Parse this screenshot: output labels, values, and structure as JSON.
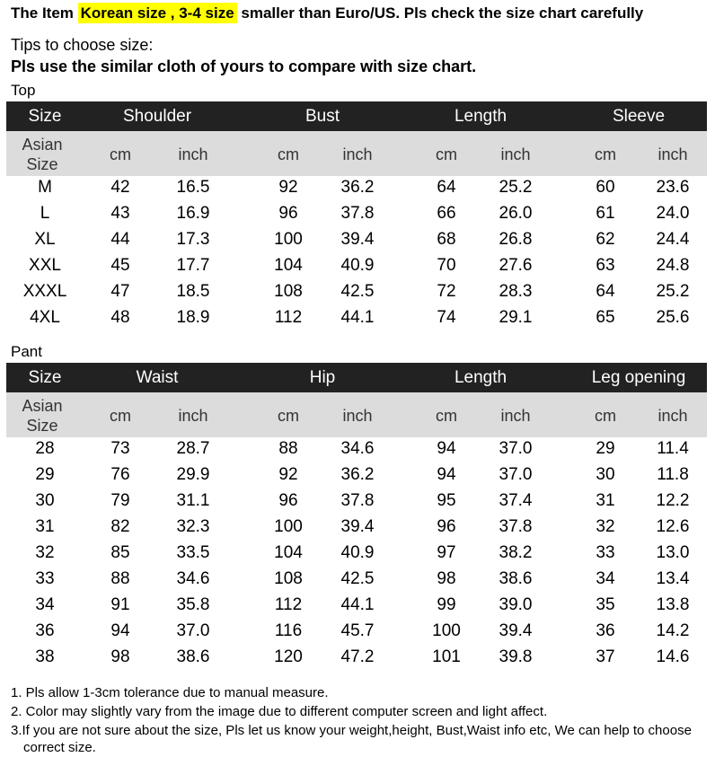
{
  "header": {
    "prefix": "The Item ",
    "highlight": "Korean size , 3-4 size",
    "suffix": " smaller than Euro/US. Pls check the size chart carefully"
  },
  "tips": {
    "title": "Tips to choose size:",
    "instruction": "Pls use the similar cloth of yours to compare with size chart."
  },
  "tables": [
    {
      "label": "Top",
      "columns": [
        "Size",
        "Shoulder",
        "Bust",
        "Length",
        "Sleeve"
      ],
      "size_label": "Asian Size",
      "units": [
        "cm",
        "inch",
        "cm",
        "inch",
        "cm",
        "inch",
        "cm",
        "inch"
      ],
      "rows": [
        [
          "M",
          "42",
          "16.5",
          "92",
          "36.2",
          "64",
          "25.2",
          "60",
          "23.6"
        ],
        [
          "L",
          "43",
          "16.9",
          "96",
          "37.8",
          "66",
          "26.0",
          "61",
          "24.0"
        ],
        [
          "XL",
          "44",
          "17.3",
          "100",
          "39.4",
          "68",
          "26.8",
          "62",
          "24.4"
        ],
        [
          "XXL",
          "45",
          "17.7",
          "104",
          "40.9",
          "70",
          "27.6",
          "63",
          "24.8"
        ],
        [
          "XXXL",
          "47",
          "18.5",
          "108",
          "42.5",
          "72",
          "28.3",
          "64",
          "25.2"
        ],
        [
          "4XL",
          "48",
          "18.9",
          "112",
          "44.1",
          "74",
          "29.1",
          "65",
          "25.6"
        ]
      ]
    },
    {
      "label": "Pant",
      "columns": [
        "Size",
        "Waist",
        "Hip",
        "Length",
        "Leg opening"
      ],
      "size_label": "Asian Size",
      "units": [
        "cm",
        "inch",
        "cm",
        "inch",
        "cm",
        "inch",
        "cm",
        "inch"
      ],
      "rows": [
        [
          "28",
          "73",
          "28.7",
          "88",
          "34.6",
          "94",
          "37.0",
          "29",
          "11.4"
        ],
        [
          "29",
          "76",
          "29.9",
          "92",
          "36.2",
          "94",
          "37.0",
          "30",
          "11.8"
        ],
        [
          "30",
          "79",
          "31.1",
          "96",
          "37.8",
          "95",
          "37.4",
          "31",
          "12.2"
        ],
        [
          "31",
          "82",
          "32.3",
          "100",
          "39.4",
          "96",
          "37.8",
          "32",
          "12.6"
        ],
        [
          "32",
          "85",
          "33.5",
          "104",
          "40.9",
          "97",
          "38.2",
          "33",
          "13.0"
        ],
        [
          "33",
          "88",
          "34.6",
          "108",
          "42.5",
          "98",
          "38.6",
          "34",
          "13.4"
        ],
        [
          "34",
          "91",
          "35.8",
          "112",
          "44.1",
          "99",
          "39.0",
          "35",
          "13.8"
        ],
        [
          "36",
          "94",
          "37.0",
          "116",
          "45.7",
          "100",
          "39.4",
          "36",
          "14.2"
        ],
        [
          "38",
          "98",
          "38.6",
          "120",
          "47.2",
          "101",
          "39.8",
          "37",
          "14.6"
        ]
      ]
    }
  ],
  "notes": [
    "1. Pls allow 1-3cm tolerance due to manual measure.",
    "2. Color may slightly vary from the image due to different computer screen and light affect.",
    "3.If you are not sure about the size, Pls let us know your weight,height, Bust,Waist info etc, We can help to choose correct size."
  ]
}
